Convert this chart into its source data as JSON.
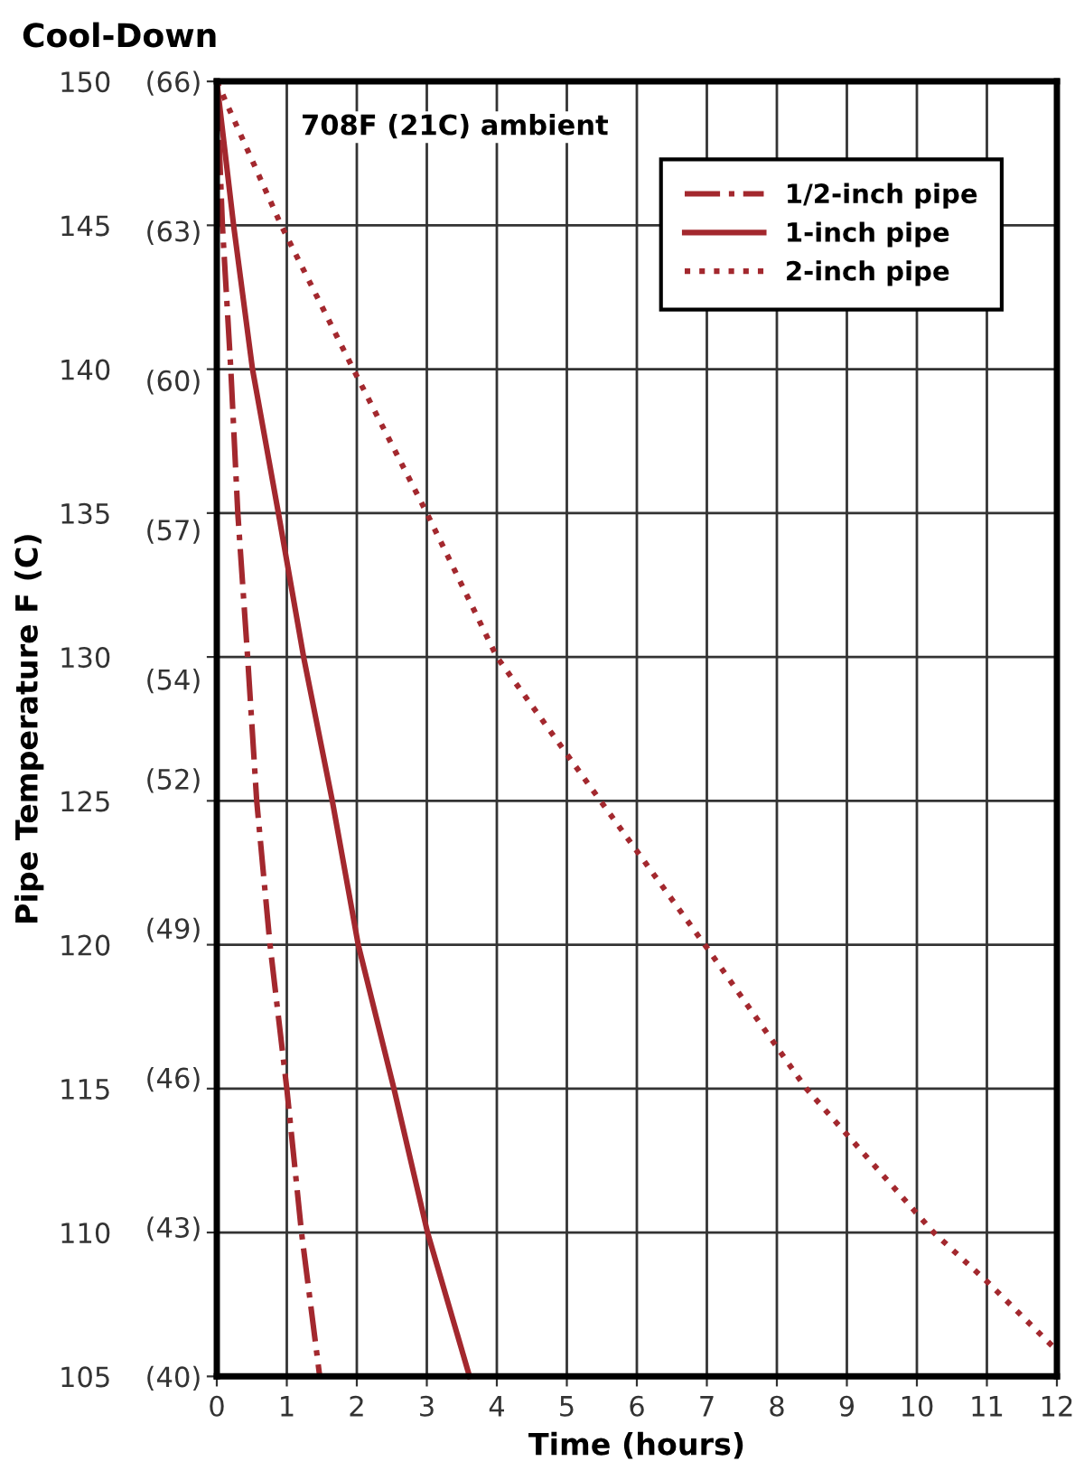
{
  "chart_data": {
    "type": "line",
    "title": "Cool-Down",
    "xlabel": "Time (hours)",
    "ylabel": "Pipe Temperature F (C)",
    "annotations": [
      "708F (21C) ambient"
    ],
    "series": [
      {
        "name": "1/2-inch pipe",
        "color": "#a3282e",
        "line_style": "dashdot",
        "x": [
          0,
          0.08,
          0.2,
          0.3,
          0.44,
          0.57,
          0.76,
          1.0,
          1.21,
          1.47
        ],
        "values": [
          150,
          145,
          140,
          135,
          130,
          125,
          120,
          115,
          110,
          105
        ]
      },
      {
        "name": "1-inch pipe",
        "color": "#a3282e",
        "line_style": "solid",
        "x": [
          0,
          0.24,
          0.51,
          0.88,
          1.24,
          1.65,
          2.02,
          2.53,
          3.01,
          3.61
        ],
        "values": [
          150,
          145,
          140,
          135,
          130,
          125,
          120,
          115,
          110,
          105
        ]
      },
      {
        "name": "2-inch pipe",
        "color": "#a3282e",
        "line_style": "dotted",
        "x": [
          0,
          0.92,
          1.95,
          3.0,
          4.0,
          5.48,
          6.97,
          8.42,
          10.24,
          11,
          12
        ],
        "values": [
          150,
          145,
          140,
          135,
          130,
          125,
          120,
          115,
          110,
          108.3,
          105.9
        ]
      }
    ],
    "xlim": [
      0,
      12
    ],
    "xticks": [
      0,
      1,
      2,
      3,
      4,
      5,
      6,
      7,
      8,
      9,
      10,
      11,
      12
    ],
    "ylim": [
      105,
      150
    ],
    "yticks": [
      105,
      110,
      115,
      120,
      125,
      130,
      135,
      140,
      145,
      150
    ],
    "y2lim": [
      40,
      66
    ],
    "y2ticks": [
      {
        "value": 40,
        "label": "(40)"
      },
      {
        "value": 43,
        "label": "(43)"
      },
      {
        "value": 46,
        "label": "(46)"
      },
      {
        "value": 49,
        "label": "(49)"
      },
      {
        "value": 52,
        "label": "(52)"
      },
      {
        "value": 54,
        "label": "(54)"
      },
      {
        "value": 57,
        "label": "(57)"
      },
      {
        "value": 60,
        "label": "(60)"
      },
      {
        "value": 63,
        "label": "(63)"
      },
      {
        "value": 66,
        "label": "(66)"
      }
    ],
    "grid": true,
    "legend": "top right",
    "marker": "none"
  }
}
